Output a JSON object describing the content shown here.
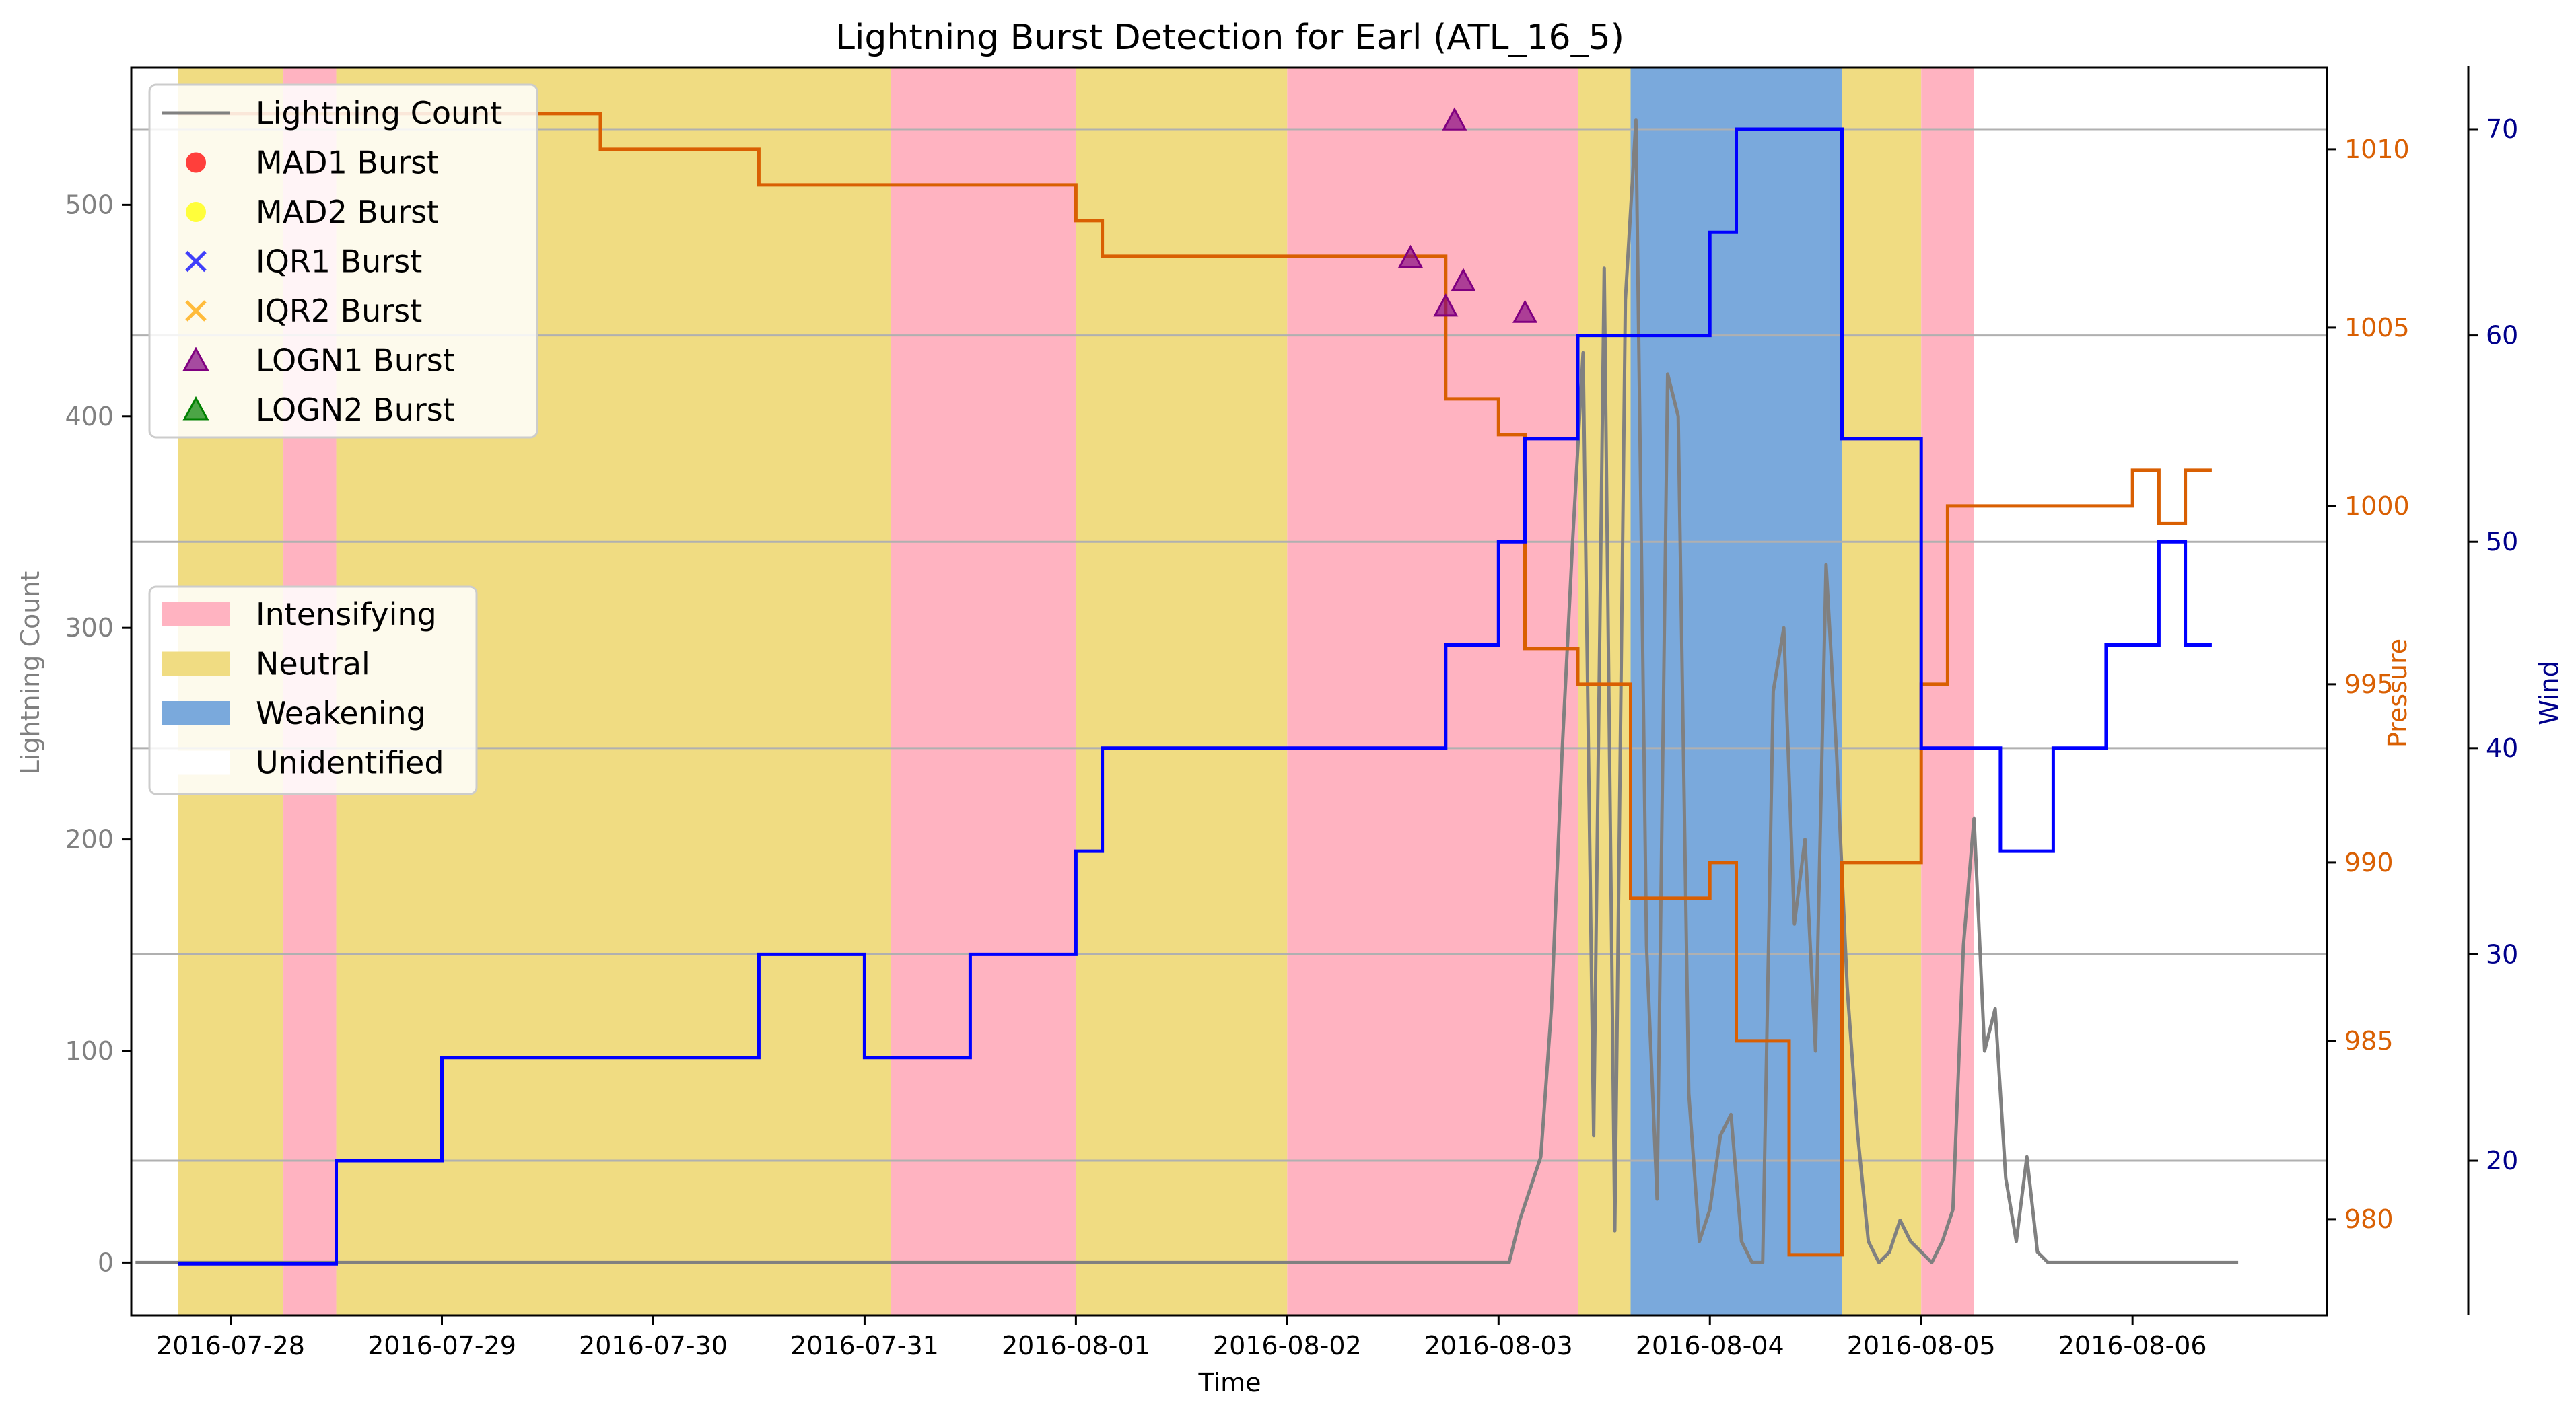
{
  "chart_data": {
    "type": "line",
    "title": "Lightning Burst Detection for Earl (ATL_16_5)",
    "xlabel": "Time",
    "ylabel": "Lightning Count",
    "y2label": "Pressure",
    "y3label": "Wind",
    "x_ticks": [
      "2016-07-28",
      "2016-07-29",
      "2016-07-30",
      "2016-07-31",
      "2016-08-01",
      "2016-08-02",
      "2016-08-03",
      "2016-08-04",
      "2016-08-05",
      "2016-08-06"
    ],
    "ylim": [
      -25,
      565
    ],
    "yticks": [
      0,
      100,
      200,
      300,
      400,
      500
    ],
    "y2lim": [
      977.3,
      1012.3
    ],
    "y2ticks": [
      980,
      985,
      990,
      995,
      1000,
      1005,
      1010
    ],
    "y3lim": [
      12.5,
      73.0
    ],
    "y3ticks": [
      20,
      30,
      40,
      50,
      60,
      70
    ],
    "x_range_days": [
      -0.47,
      9.92
    ],
    "grid": "horizontal lines at wind ticks",
    "colors": {
      "lightning": "#808080",
      "pressure": "#d95f02",
      "wind": "#0000ff",
      "intensifying": "#ffb3c1",
      "neutral": "#f0dc82",
      "weakening": "#7aa9dc",
      "mad1": "#ff0000",
      "mad2": "#ffff00",
      "iqr1": "#0000ff",
      "iqr2": "#ffa500",
      "logn1": "#800080",
      "logn2": "#008000"
    },
    "legend_markers": [
      {
        "label": "Lightning Count",
        "marker": "line",
        "color": "#808080"
      },
      {
        "label": "MAD1 Burst",
        "marker": "circle",
        "color": "#ff0000"
      },
      {
        "label": "MAD2 Burst",
        "marker": "circle",
        "color": "#ffff00"
      },
      {
        "label": "IQR1 Burst",
        "marker": "x",
        "color": "#0000ff"
      },
      {
        "label": "IQR2 Burst",
        "marker": "x",
        "color": "#ffa500"
      },
      {
        "label": "LOGN1 Burst",
        "marker": "triangle",
        "color": "#800080"
      },
      {
        "label": "LOGN2 Burst",
        "marker": "triangle",
        "color": "#008000"
      }
    ],
    "legend_phases": [
      {
        "label": "Intensifying",
        "color": "#ffb3c1"
      },
      {
        "label": "Neutral",
        "color": "#f0dc82"
      },
      {
        "label": "Weakening",
        "color": "#7aa9dc"
      },
      {
        "label": "Unidentified",
        "color": "#ffffff"
      }
    ],
    "phases": [
      {
        "phase": "Neutral",
        "start": "2016-07-27 18:00",
        "end": "2016-07-28 06:00"
      },
      {
        "phase": "Intensifying",
        "start": "2016-07-28 06:00",
        "end": "2016-07-28 12:00"
      },
      {
        "phase": "Neutral",
        "start": "2016-07-28 12:00",
        "end": "2016-07-31 03:00"
      },
      {
        "phase": "Intensifying",
        "start": "2016-07-31 03:00",
        "end": "2016-08-01 00:00"
      },
      {
        "phase": "Neutral",
        "start": "2016-08-01 00:00",
        "end": "2016-08-02 00:00"
      },
      {
        "phase": "Intensifying",
        "start": "2016-08-02 00:00",
        "end": "2016-08-03 09:00"
      },
      {
        "phase": "Neutral",
        "start": "2016-08-03 09:00",
        "end": "2016-08-03 15:00"
      },
      {
        "phase": "Weakening",
        "start": "2016-08-03 15:00",
        "end": "2016-08-04 15:00"
      },
      {
        "phase": "Neutral",
        "start": "2016-08-04 15:00",
        "end": "2016-08-05 00:00"
      },
      {
        "phase": "Intensifying",
        "start": "2016-08-05 00:00",
        "end": "2016-08-05 06:00"
      }
    ],
    "series": [
      {
        "name": "Wind",
        "axis": "y3",
        "step": true,
        "x": [
          "2016-07-27 18:00",
          "2016-07-28 12:00",
          "2016-07-29 00:00",
          "2016-07-30 12:00",
          "2016-07-31 00:00",
          "2016-07-31 12:00",
          "2016-08-01 00:00",
          "2016-08-01 03:00",
          "2016-08-02 18:00",
          "2016-08-03 00:00",
          "2016-08-03 03:00",
          "2016-08-03 09:00",
          "2016-08-04 00:00",
          "2016-08-04 03:00",
          "2016-08-04 15:00",
          "2016-08-05 00:00",
          "2016-08-05 09:00",
          "2016-08-05 15:00",
          "2016-08-05 21:00",
          "2016-08-06 03:00",
          "2016-08-06 06:00"
        ],
        "values": [
          15,
          20,
          25,
          30,
          25,
          30,
          35,
          40,
          45,
          50,
          55,
          60,
          65,
          70,
          55,
          40,
          35,
          40,
          45,
          50,
          45
        ]
      },
      {
        "name": "Pressure",
        "axis": "y2",
        "step": true,
        "x": [
          "2016-07-27 18:00",
          "2016-07-29 18:00",
          "2016-07-30 12:00",
          "2016-07-31 00:00",
          "2016-08-01 00:00",
          "2016-08-01 03:00",
          "2016-08-02 12:00",
          "2016-08-02 18:00",
          "2016-08-03 00:00",
          "2016-08-03 03:00",
          "2016-08-03 09:00",
          "2016-08-03 15:00",
          "2016-08-04 00:00",
          "2016-08-04 03:00",
          "2016-08-04 09:00",
          "2016-08-04 15:00",
          "2016-08-05 00:00",
          "2016-08-05 03:00",
          "2016-08-06 00:00",
          "2016-08-06 03:00"
        ],
        "values": [
          1011,
          1010,
          1009,
          1009,
          1008,
          1007,
          1007,
          1003,
          1002,
          996,
          995,
          989,
          990,
          985,
          979,
          990,
          995,
          1000,
          1001,
          999.5
        ],
        "end_value": 1001
      },
      {
        "name": "Lightning Count",
        "axis": "y",
        "x_days_from_2016-07-28": [
          -0.45,
          1.8,
          1.95,
          2.05,
          2.15,
          2.25,
          2.35,
          2.4,
          2.45,
          2.5,
          2.52,
          2.55,
          2.57,
          2.6,
          2.62,
          2.65,
          2.7,
          2.72,
          2.75,
          2.78,
          2.8,
          2.82,
          2.85,
          2.88,
          2.9,
          2.95,
          3.0,
          3.05,
          3.1,
          3.12,
          3.15,
          3.2,
          3.25,
          3.3,
          3.35,
          3.4,
          3.45,
          3.5,
          3.55,
          3.6,
          3.62,
          3.65,
          3.7,
          3.75,
          3.8,
          3.85,
          3.9,
          3.95,
          4.0,
          4.05,
          4.1,
          4.15,
          4.2,
          4.25,
          4.3,
          4.35,
          4.4,
          4.45,
          4.5,
          4.55,
          4.6,
          4.65,
          4.7,
          4.75,
          4.8,
          4.85,
          4.9,
          4.95,
          5.0,
          5.1,
          5.2,
          5.3,
          5.4,
          5.5,
          5.6,
          5.7,
          5.8,
          5.9,
          6.0,
          6.05,
          6.1,
          6.15,
          6.2,
          6.25,
          6.3,
          6.35,
          6.4,
          6.45,
          6.5,
          6.55,
          6.6,
          6.65,
          6.7,
          6.75,
          6.8,
          6.85,
          6.9,
          6.95,
          7.0,
          7.05,
          7.1,
          7.15,
          7.2,
          7.25,
          7.3,
          7.35,
          7.4,
          7.45,
          7.5,
          7.55,
          7.6,
          7.65,
          7.7,
          7.75,
          7.8,
          7.85,
          7.9,
          7.95,
          8.0,
          8.05,
          8.1,
          8.15,
          8.2,
          8.25,
          8.3,
          8.35,
          8.4,
          8.45,
          8.5,
          8.55,
          8.6,
          8.65,
          8.7,
          8.75,
          8.8,
          9.0,
          9.5,
          9.8
        ],
        "values": [
          0,
          0,
          0,
          0,
          0,
          0,
          0,
          0,
          0,
          0,
          0,
          0,
          0,
          0,
          0,
          0,
          0,
          0,
          0,
          0,
          0,
          0,
          0,
          0,
          0,
          0,
          0,
          0,
          0,
          0,
          0,
          0,
          0,
          0,
          0,
          0,
          0,
          0,
          0,
          0,
          0,
          0,
          0,
          0,
          0,
          0,
          0,
          0,
          0,
          0,
          0,
          0,
          0,
          0,
          0,
          0,
          0,
          0,
          0,
          0,
          0,
          0,
          0,
          0,
          0,
          0,
          0,
          0,
          0,
          0,
          0,
          0,
          0,
          0,
          0,
          0,
          0,
          0,
          0,
          0,
          20,
          35,
          50,
          120,
          240,
          340,
          430,
          60,
          470,
          15,
          455,
          540,
          150,
          30,
          420,
          400,
          80,
          10,
          25,
          60,
          70,
          10,
          0,
          0,
          270,
          300,
          160,
          200,
          100,
          330,
          240,
          130,
          60,
          10,
          0,
          5,
          20,
          10,
          5,
          0,
          10,
          25,
          150,
          210,
          100,
          120,
          40,
          10,
          50,
          5,
          0,
          0,
          0,
          0,
          0,
          0,
          0
        ]
      }
    ],
    "bursts": [
      {
        "type": "LOGN1",
        "x": "2016-08-02 14:00",
        "value": 475
      },
      {
        "type": "LOGN1",
        "x": "2016-08-02 18:00",
        "value": 452
      },
      {
        "type": "LOGN1",
        "x": "2016-08-02 19:00",
        "value": 540
      },
      {
        "type": "LOGN1",
        "x": "2016-08-02 20:00",
        "value": 464
      },
      {
        "type": "LOGN1",
        "x": "2016-08-03 03:00",
        "value": 449
      }
    ]
  }
}
